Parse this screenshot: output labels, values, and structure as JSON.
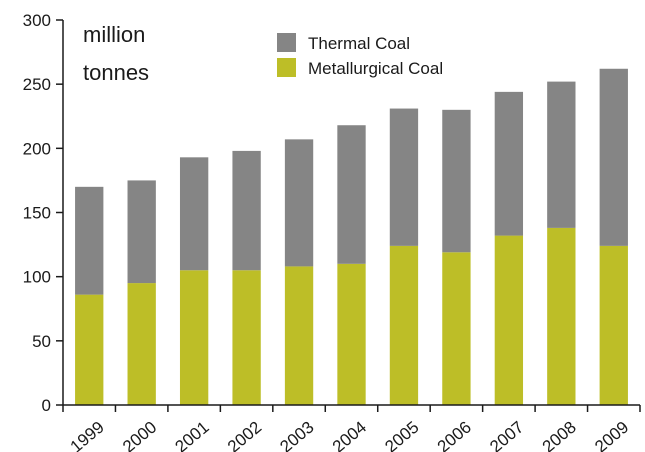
{
  "chart_data": {
    "type": "bar",
    "stacked": true,
    "title": "",
    "xlabel": "",
    "ylabel": "million tonnes",
    "ylabel_lines": [
      "million",
      "tonnes"
    ],
    "ylim": [
      0,
      300
    ],
    "yticks": [
      0,
      50,
      100,
      150,
      200,
      250,
      300
    ],
    "grid": false,
    "legend_position": "top",
    "categories": [
      "1999",
      "2000",
      "2001",
      "2002",
      "2003",
      "2004",
      "2005",
      "2006",
      "2007",
      "2008",
      "2009"
    ],
    "series": [
      {
        "name": "Metallurgical Coal",
        "color": "#bdbe27",
        "values": [
          86,
          95,
          105,
          105,
          108,
          110,
          124,
          119,
          132,
          138,
          124
        ]
      },
      {
        "name": "Thermal Coal",
        "color": "#858585",
        "values": [
          84,
          80,
          88,
          93,
          99,
          108,
          107,
          111,
          112,
          114,
          138
        ]
      }
    ],
    "legend_order": [
      "Thermal Coal",
      "Metallurgical Coal"
    ]
  }
}
